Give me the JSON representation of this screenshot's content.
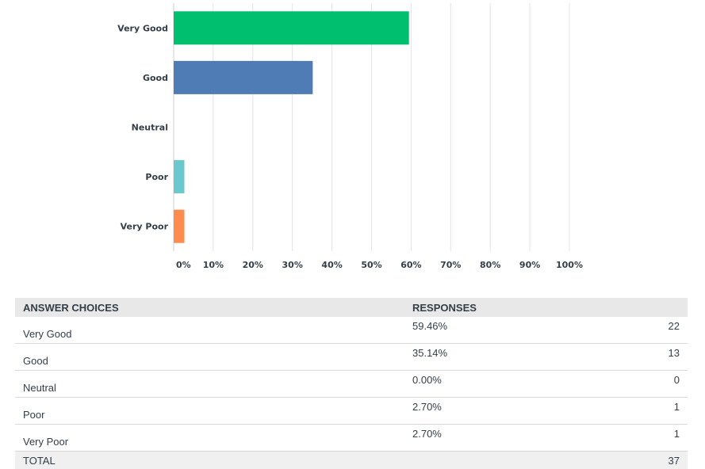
{
  "chart_data": {
    "type": "bar",
    "orientation": "horizontal",
    "categories": [
      "Very Good",
      "Good",
      "Neutral",
      "Poor",
      "Very Poor"
    ],
    "values": [
      59.46,
      35.14,
      0.0,
      2.7,
      2.7
    ],
    "colors": [
      "#00bf6f",
      "#507cb6",
      "#f9be00",
      "#6bc8cd",
      "#ff8b4f"
    ],
    "xlim": [
      0,
      100
    ],
    "x_ticks": [
      "0%",
      "10%",
      "20%",
      "30%",
      "40%",
      "50%",
      "60%",
      "70%",
      "80%",
      "90%",
      "100%"
    ],
    "grid": true,
    "title": "",
    "xlabel": "",
    "ylabel": ""
  },
  "table": {
    "headers": {
      "choices": "ANSWER CHOICES",
      "responses": "RESPONSES"
    },
    "rows": [
      {
        "choice": "Very Good",
        "percent": "59.46%",
        "count": "22"
      },
      {
        "choice": "Good",
        "percent": "35.14%",
        "count": "13"
      },
      {
        "choice": "Neutral",
        "percent": "0.00%",
        "count": "0"
      },
      {
        "choice": "Poor",
        "percent": "2.70%",
        "count": "1"
      },
      {
        "choice": "Very Poor",
        "percent": "2.70%",
        "count": "1"
      }
    ],
    "total": {
      "label": "TOTAL",
      "count": "37"
    }
  }
}
